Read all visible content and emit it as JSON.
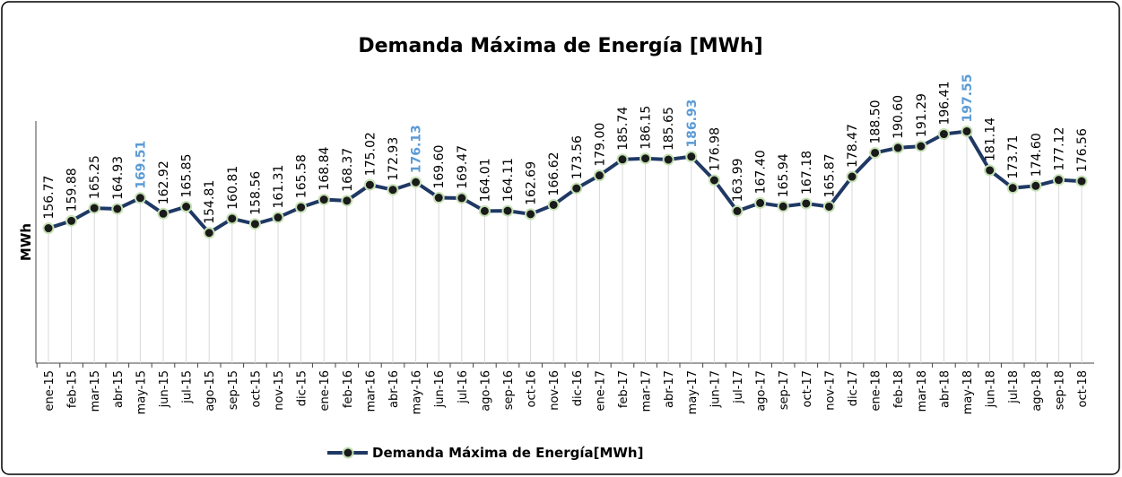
{
  "chart_data": {
    "type": "line",
    "title": "Demanda Máxima de Energía [MWh]",
    "y_label": "MWh",
    "categories": [
      "ene-15",
      "feb-15",
      "mar-15",
      "abr-15",
      "may-15",
      "jun-15",
      "jul-15",
      "ago-15",
      "sep-15",
      "oct-15",
      "nov-15",
      "dic-15",
      "ene-16",
      "feb-16",
      "mar-16",
      "abr-16",
      "may-16",
      "jun-16",
      "jul-16",
      "ago-16",
      "sep-16",
      "oct-16",
      "nov-16",
      "dic-16",
      "ene-17",
      "feb-17",
      "mar-17",
      "abr-17",
      "may-17",
      "jun-17",
      "jul-17",
      "ago-17",
      "sep-17",
      "oct-17",
      "nov-17",
      "dic-17",
      "ene-18",
      "feb-18",
      "mar-18",
      "abr-18",
      "may-18",
      "jun-18",
      "jul-18",
      "ago-18",
      "sep-18",
      "oct-18"
    ],
    "series": [
      {
        "name": "Demanda Máxima de Energía[MWh]",
        "color": "#1f3864",
        "marker_edge_color": "#c5e0b4",
        "values": [
          156.77,
          159.88,
          165.25,
          164.93,
          169.51,
          162.92,
          165.85,
          154.81,
          160.81,
          158.56,
          161.31,
          165.58,
          168.84,
          168.37,
          175.02,
          172.93,
          176.13,
          169.6,
          169.47,
          164.01,
          164.11,
          162.69,
          166.62,
          173.56,
          179.0,
          185.74,
          186.15,
          185.65,
          186.93,
          176.98,
          163.99,
          167.4,
          165.94,
          167.18,
          165.87,
          178.47,
          188.5,
          190.6,
          191.29,
          196.41,
          197.55,
          181.14,
          173.71,
          174.6,
          177.12,
          176.56
        ],
        "value_labels": [
          "156.77",
          "159.88",
          "165.25",
          "164.93",
          "169.51",
          "162.92",
          "165.85",
          "154.81",
          "160.81",
          "158.56",
          "161.31",
          "165.58",
          "168.84",
          "168.37",
          "175.02",
          "172.93",
          "176.13",
          "169.60",
          "169.47",
          "164.01",
          "164.11",
          "162.69",
          "166.62",
          "173.56",
          "179.00",
          "185.74",
          "186.15",
          "185.65",
          "186.93",
          "176.98",
          "163.99",
          "167.40",
          "165.94",
          "167.18",
          "165.87",
          "178.47",
          "188.50",
          "190.60",
          "191.29",
          "196.41",
          "197.55",
          "181.14",
          "173.71",
          "174.60",
          "177.12",
          "176.56"
        ]
      }
    ],
    "highlight_indices": [
      4,
      16,
      28,
      40
    ],
    "highlight_label_color": "#5b9bd5",
    "ylim": [
      100,
      200
    ],
    "legend": "bottom"
  }
}
